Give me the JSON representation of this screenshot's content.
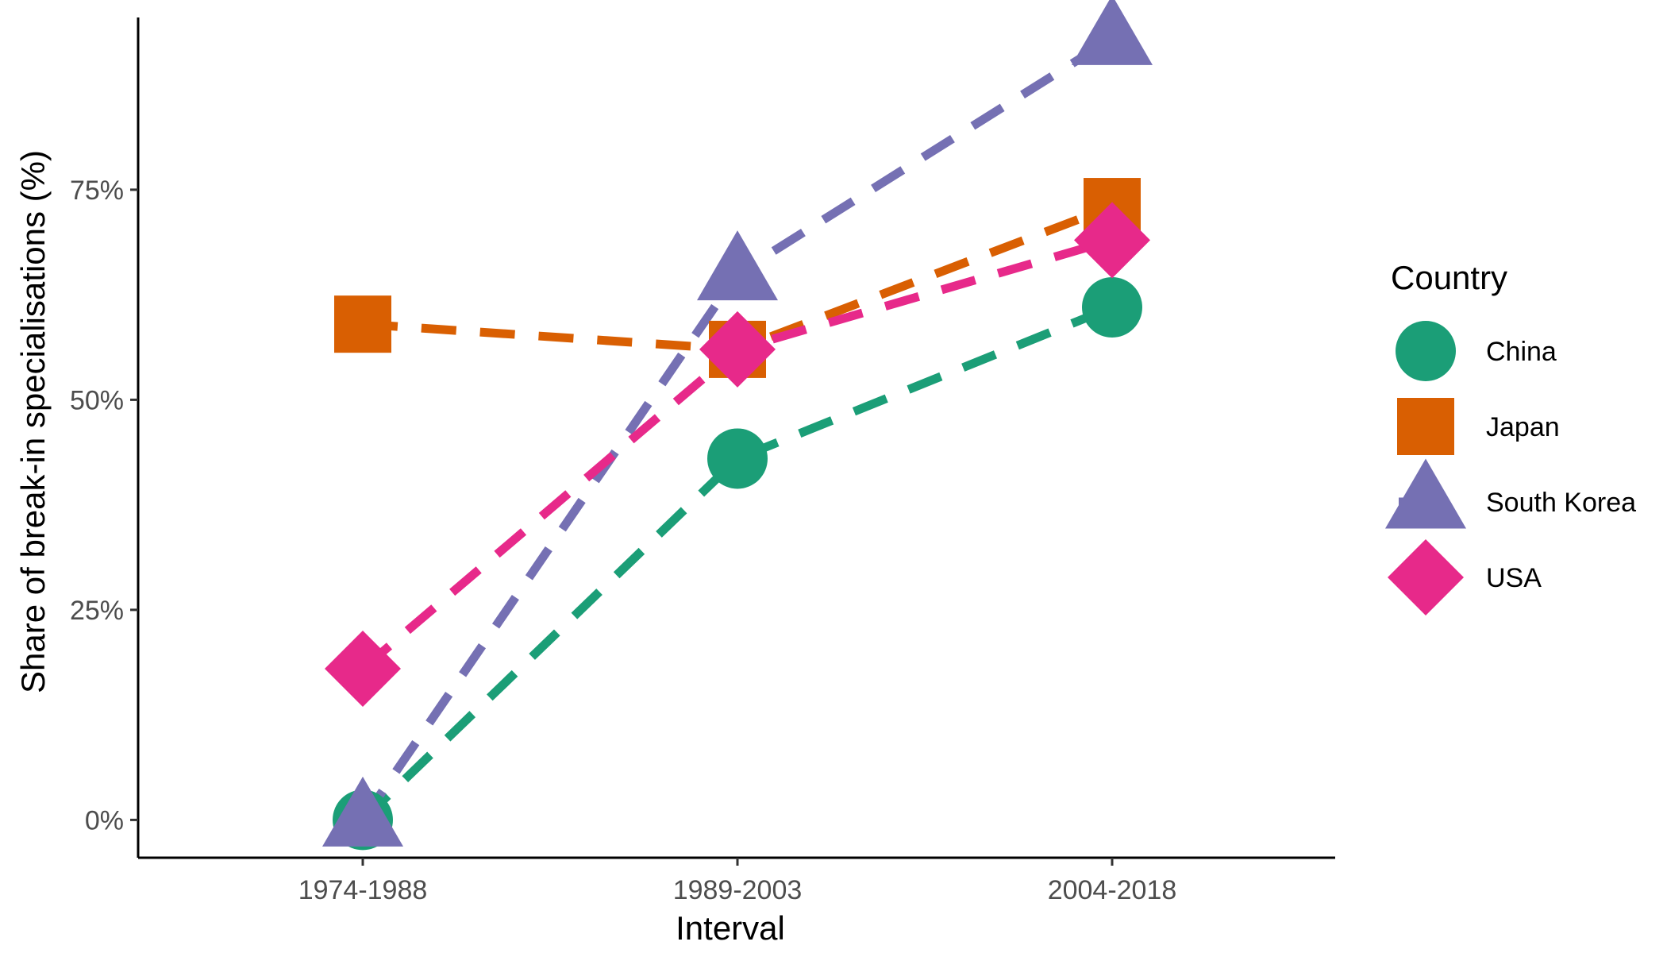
{
  "chart_data": {
    "type": "line",
    "title": "",
    "xlabel": "Interval",
    "ylabel": "Share of break-in specialisations (%)",
    "categories": [
      "1974-1988",
      "1989-2003",
      "2004-2018"
    ],
    "ylim": [
      -0.045,
      0.955
    ],
    "yticks": [
      0,
      0.25,
      0.5,
      0.75
    ],
    "ytick_labels": [
      "0%",
      "25%",
      "50%",
      "75%"
    ],
    "grid": false,
    "line_style": "dashed",
    "legend": {
      "title": "Country",
      "position": "right"
    },
    "series": [
      {
        "name": "China",
        "values": [
          0.0,
          0.43,
          0.61
        ],
        "color": "#1b9e77",
        "marker": "circle"
      },
      {
        "name": "Japan",
        "values": [
          0.59,
          0.56,
          0.73
        ],
        "color": "#d95f02",
        "marker": "square"
      },
      {
        "name": "South Korea",
        "values": [
          0.0,
          0.65,
          0.93
        ],
        "color": "#7570b3",
        "marker": "triangle"
      },
      {
        "name": "USA",
        "values": [
          0.18,
          0.56,
          0.69
        ],
        "color": "#e7298a",
        "marker": "diamond"
      }
    ]
  }
}
